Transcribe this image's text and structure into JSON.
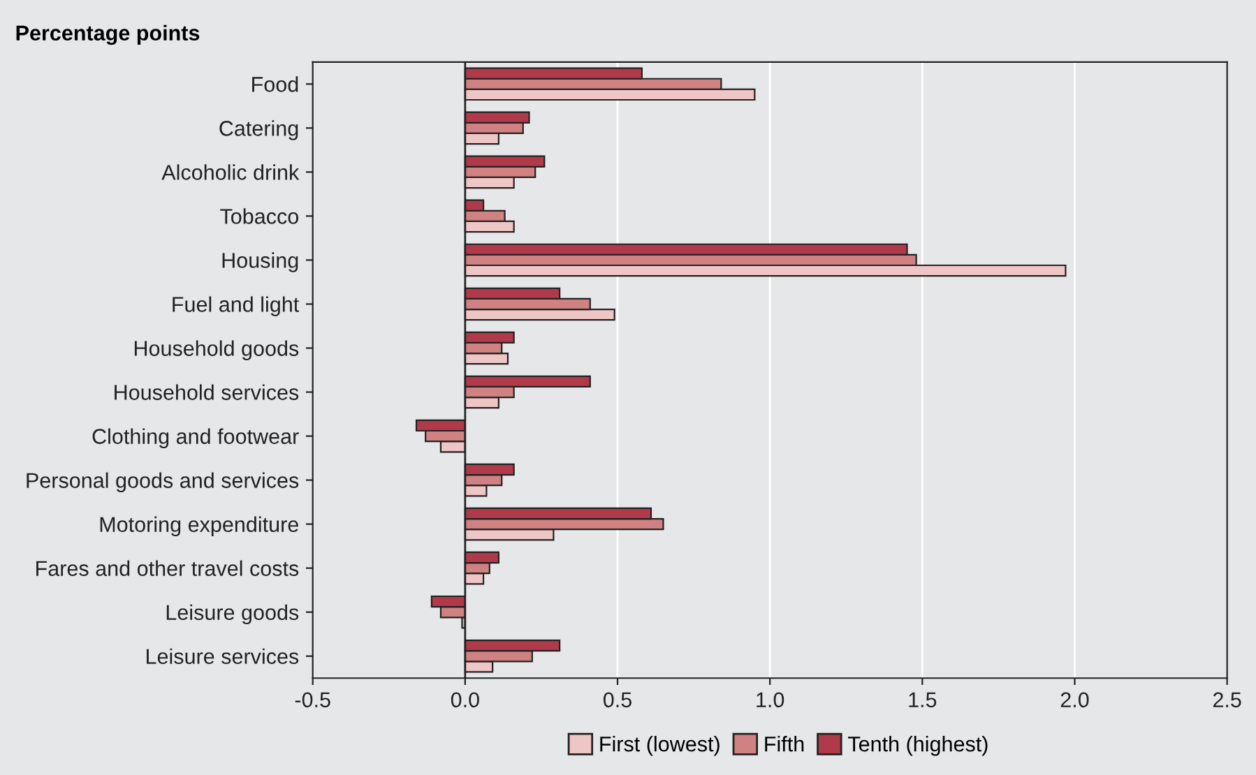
{
  "chart_data": {
    "type": "bar",
    "orientation": "horizontal",
    "title": "Percentage points",
    "categories": [
      "Food",
      "Catering",
      "Alcoholic drink",
      "Tobacco",
      "Housing",
      "Fuel and light",
      "Household goods",
      "Household services",
      "Clothing and footwear",
      "Personal goods and services",
      "Motoring expenditure",
      "Fares and other travel costs",
      "Leisure goods",
      "Leisure services"
    ],
    "series": [
      {
        "name": "First (lowest)",
        "color": "#efc6c6",
        "values": [
          0.95,
          0.11,
          0.16,
          0.16,
          1.97,
          0.49,
          0.14,
          0.11,
          -0.08,
          0.07,
          0.29,
          0.06,
          -0.01,
          0.09
        ]
      },
      {
        "name": "Fifth",
        "color": "#d08282",
        "values": [
          0.84,
          0.19,
          0.23,
          0.13,
          1.48,
          0.41,
          0.12,
          0.16,
          -0.13,
          0.12,
          0.65,
          0.08,
          -0.08,
          0.22
        ]
      },
      {
        "name": "Tenth (highest)",
        "color": "#b03a4a",
        "values": [
          0.58,
          0.21,
          0.26,
          0.06,
          1.45,
          0.31,
          0.16,
          0.41,
          -0.16,
          0.16,
          0.61,
          0.11,
          -0.11,
          0.31
        ]
      }
    ],
    "xlim": [
      -0.5,
      2.5
    ],
    "xticks": [
      {
        "value": -0.5,
        "label": "-0.5"
      },
      {
        "value": 0.0,
        "label": "0.0"
      },
      {
        "value": 0.5,
        "label": "0.5"
      },
      {
        "value": 1.0,
        "label": "1.0"
      },
      {
        "value": 1.5,
        "label": "1.5"
      },
      {
        "value": 2.0,
        "label": "2.0"
      },
      {
        "value": 2.5,
        "label": "2.5"
      }
    ],
    "grid": "x",
    "legend": "bottom"
  }
}
